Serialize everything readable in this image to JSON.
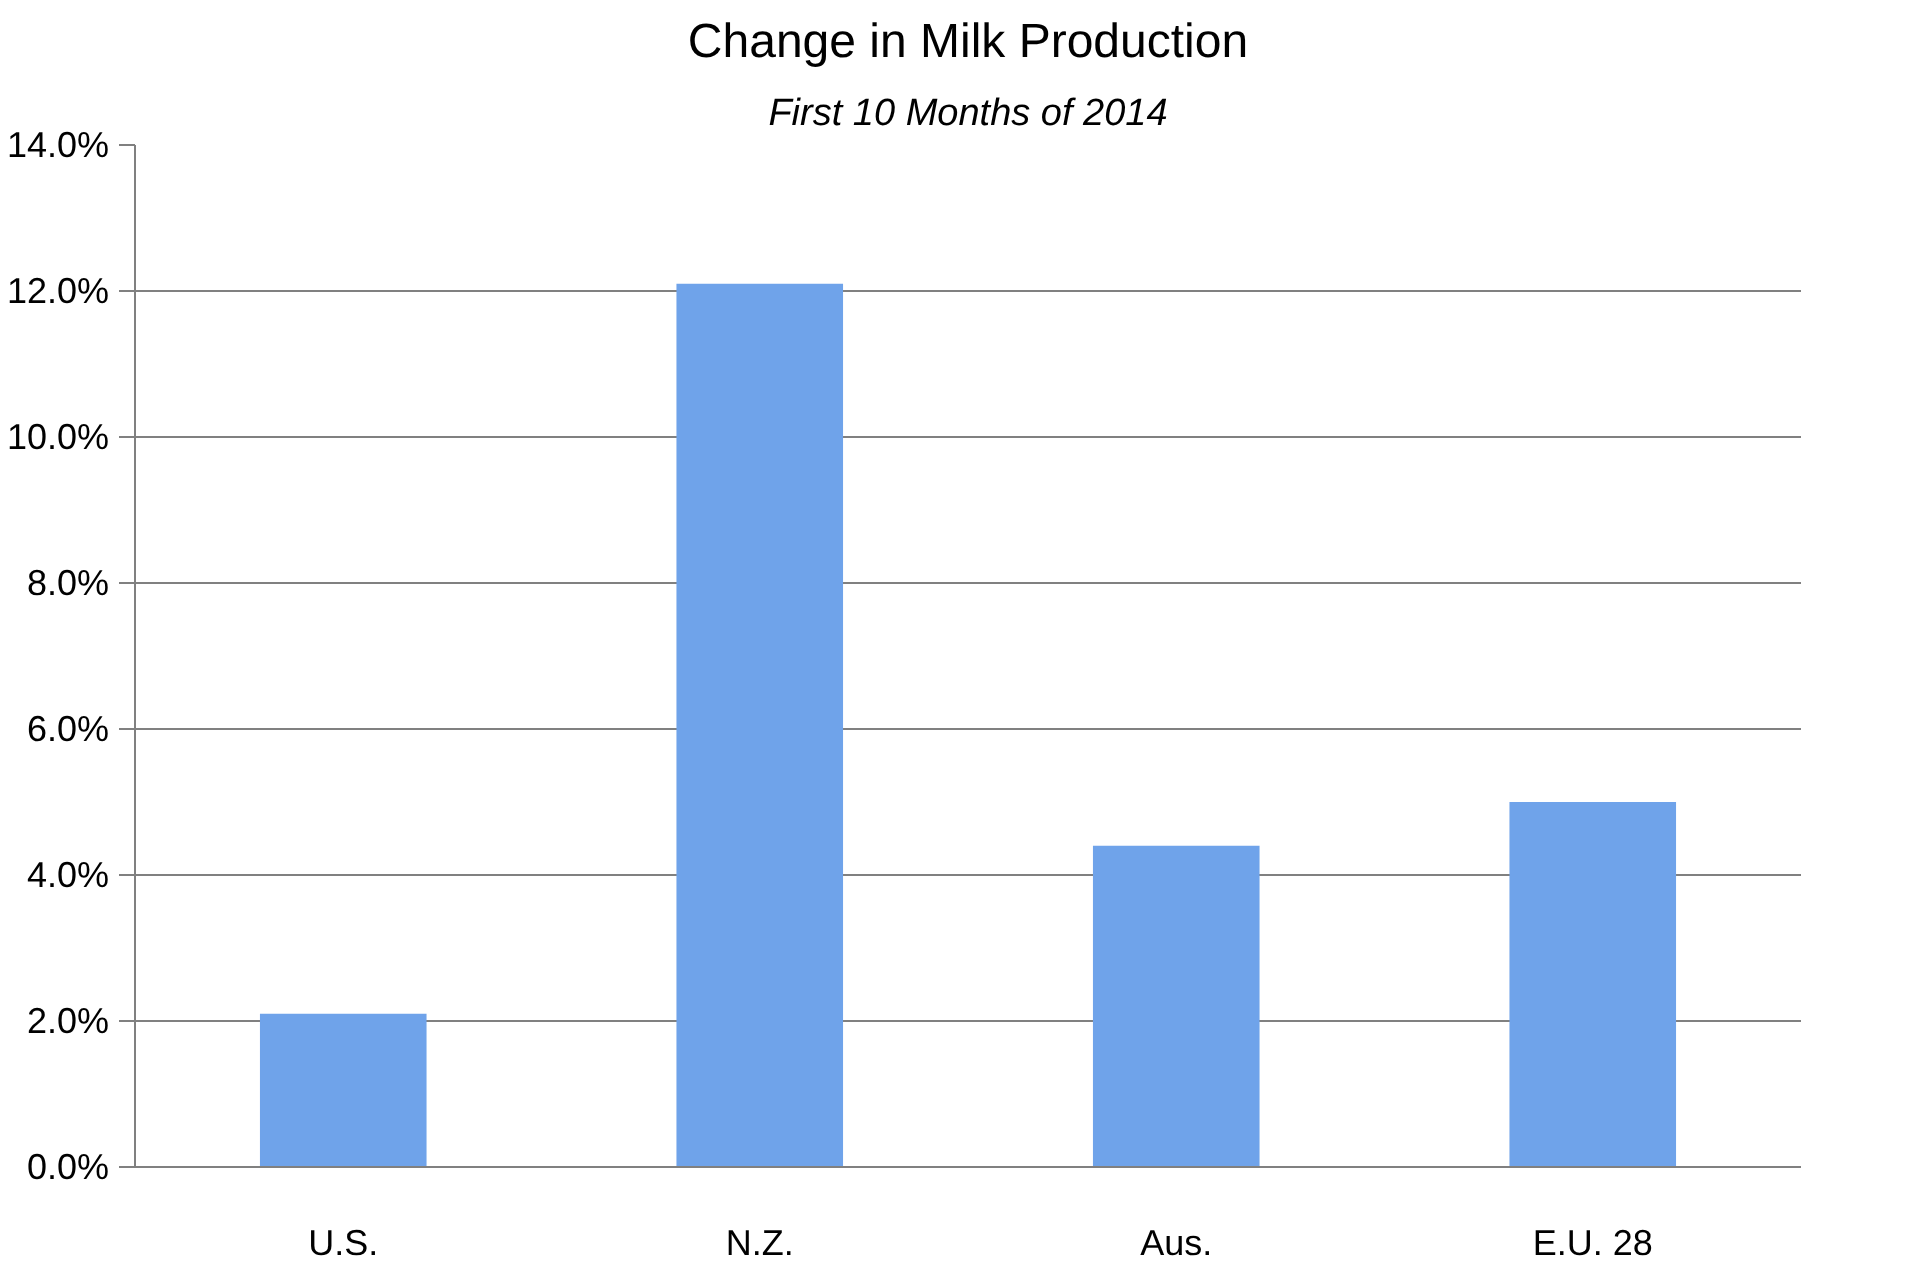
{
  "chart_data": {
    "type": "bar",
    "title": "Change in Milk Production",
    "subtitle": "First 10 Months of 2014",
    "categories": [
      "U.S.",
      "N.Z.",
      "Aus.",
      "E.U. 28"
    ],
    "values": [
      2.1,
      12.1,
      4.4,
      5.0
    ],
    "color": "#6fa3ea",
    "ylim": [
      0,
      14
    ],
    "yticks": [
      {
        "value": 0,
        "label": "0.0%"
      },
      {
        "value": 2,
        "label": "2.0%"
      },
      {
        "value": 4,
        "label": "4.0%"
      },
      {
        "value": 6,
        "label": "6.0%"
      },
      {
        "value": 8,
        "label": "8.0%"
      },
      {
        "value": 10,
        "label": "10.0%"
      },
      {
        "value": 12,
        "label": "12.0%"
      },
      {
        "value": 14,
        "label": "14.0%"
      }
    ],
    "grid": "y"
  }
}
